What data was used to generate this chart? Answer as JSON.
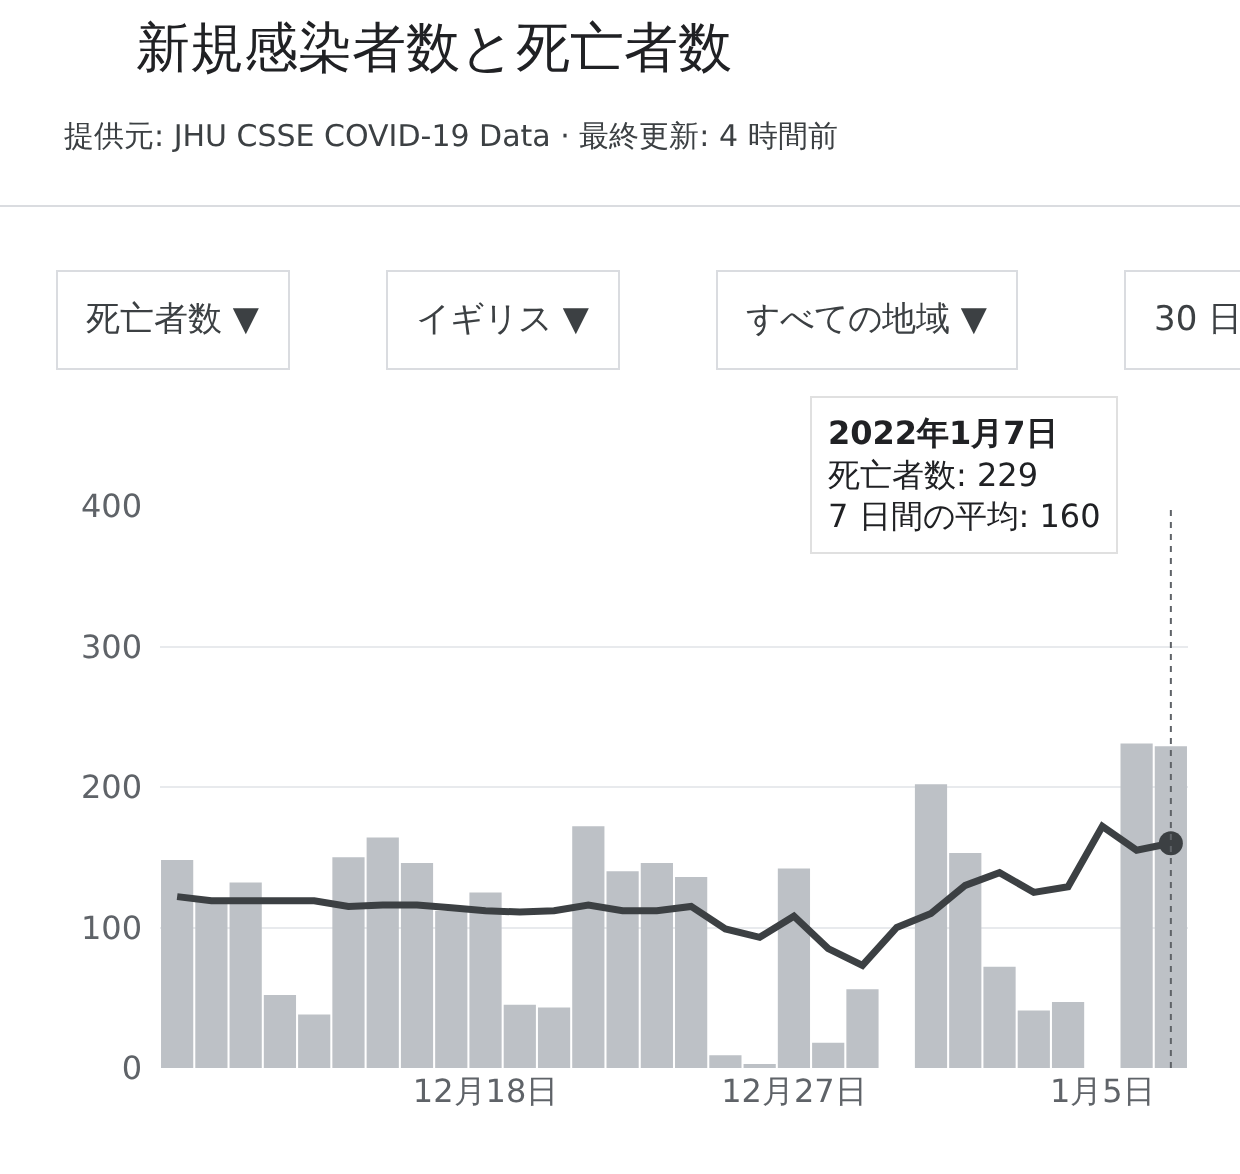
{
  "chart_data": {
    "type": "bar",
    "title": "新規感染者数と死亡者数",
    "subtitle": "提供元: JHU CSSE COVID-19 Data · 最終更新: 4 時間前",
    "x": [
      "2021-12-09",
      "2021-12-10",
      "2021-12-11",
      "2021-12-12",
      "2021-12-13",
      "2021-12-14",
      "2021-12-15",
      "2021-12-16",
      "2021-12-17",
      "2021-12-18",
      "2021-12-19",
      "2021-12-20",
      "2021-12-21",
      "2021-12-22",
      "2021-12-23",
      "2021-12-24",
      "2021-12-25",
      "2021-12-26",
      "2021-12-27",
      "2021-12-28",
      "2021-12-29",
      "2021-12-30",
      "2021-12-31",
      "2022-01-01",
      "2022-01-02",
      "2022-01-03",
      "2022-01-04",
      "2022-01-05",
      "2022-01-06",
      "2022-01-07"
    ],
    "series": [
      {
        "color": "#bdc1c6",
        "values": [
          148,
          120,
          132,
          52,
          38,
          150,
          164,
          146,
          112,
          125,
          45,
          43,
          172,
          140,
          146,
          136,
          9,
          2,
          142,
          18,
          56,
          null,
          202,
          153,
          72,
          41,
          47,
          null,
          231,
          229
        ]
      },
      {
        "type": "line",
        "color": "#3c4043",
        "values": [
          122,
          119,
          119,
          119,
          119,
          115,
          116,
          116,
          114,
          112,
          111,
          112,
          116,
          112,
          112,
          115,
          99,
          93,
          108,
          85,
          73,
          100,
          110,
          130,
          139,
          125,
          129,
          172,
          155,
          160
        ]
      }
    ],
    "xlim": [
      "2021-12-08T12:00",
      "2022-01-07T12:00"
    ],
    "xticks": [
      {
        "value": "2021-12-18",
        "label": "12月18日"
      },
      {
        "value": "2021-12-27",
        "label": "12月27日"
      },
      {
        "value": "2022-01-05",
        "label": "1月5日"
      }
    ],
    "ylim": [
      0,
      400
    ],
    "yticks": [
      0,
      100,
      200,
      300,
      400
    ],
    "grid": "y",
    "marker": "none",
    "line_style": "solid",
    "ref_lines": [
      {
        "axis": "x",
        "value": "2022-01-07",
        "line_style": "dotted",
        "color": "#5f6368"
      }
    ],
    "annotations": [
      "死亡者数 ▼",
      "イギリス ▼",
      "すべての地域 ▼",
      "30 日",
      "2022年1月7日",
      "死亡者数: 229",
      "7 日間の平均: 160"
    ]
  }
}
